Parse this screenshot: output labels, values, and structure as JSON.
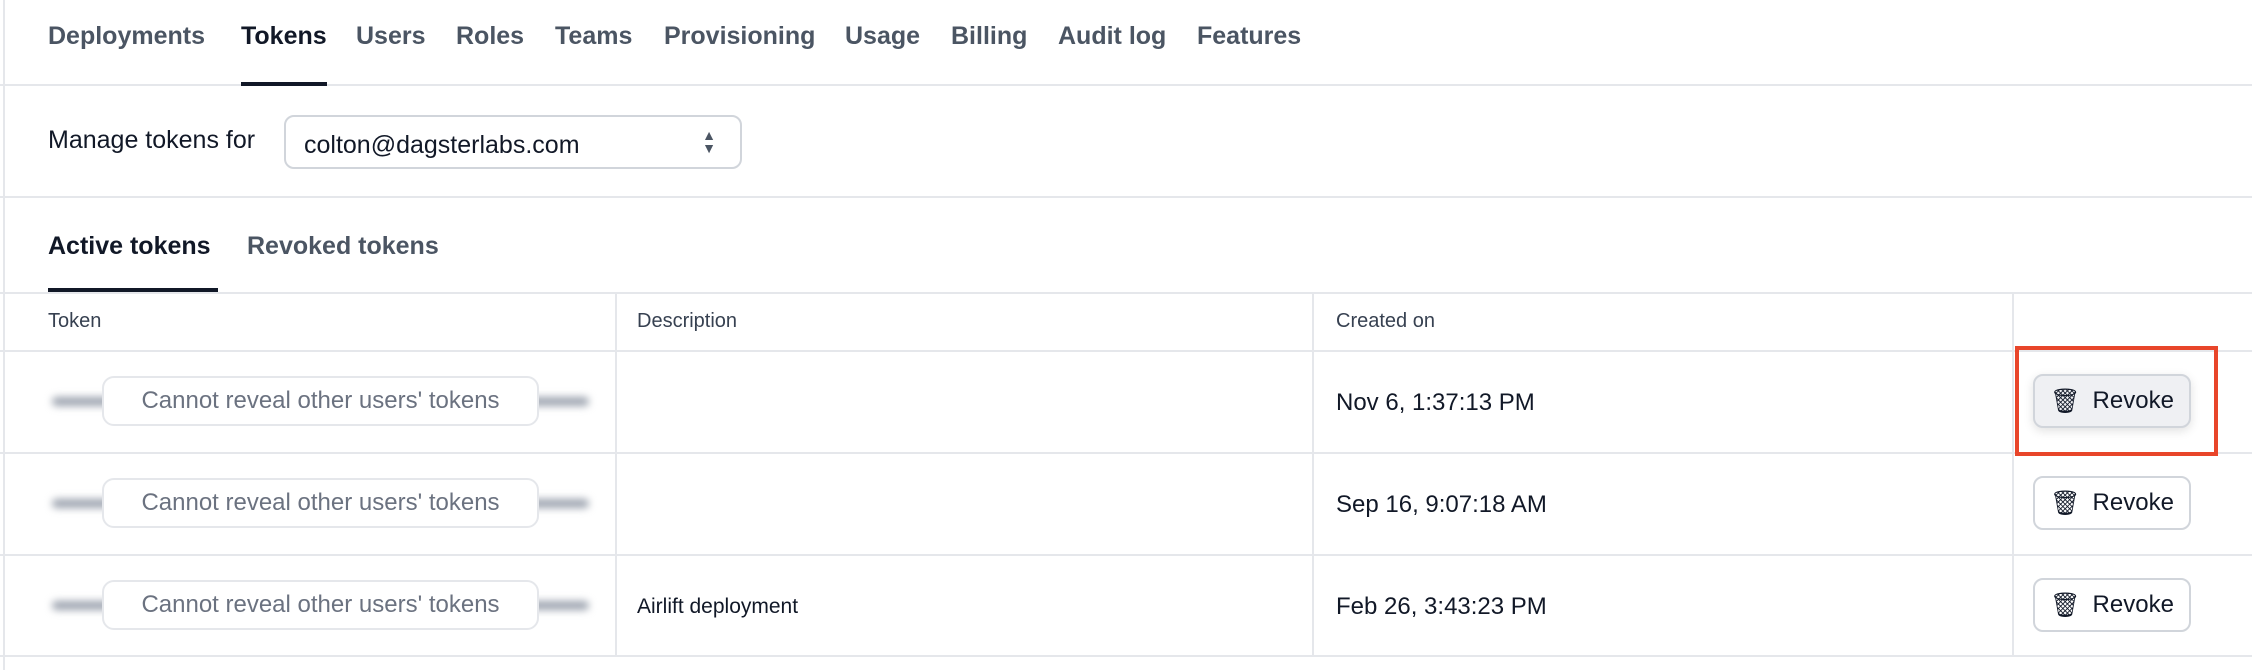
{
  "nav": {
    "tabs": [
      "Deployments",
      "Tokens",
      "Users",
      "Roles",
      "Teams",
      "Provisioning",
      "Usage",
      "Billing",
      "Audit log",
      "Features"
    ],
    "active": "Tokens"
  },
  "manage": {
    "label": "Manage tokens for",
    "selected_user": "colton@dagsterlabs.com"
  },
  "subtabs": {
    "active": "Active tokens",
    "other": "Revoked tokens"
  },
  "table": {
    "headers": [
      "Token",
      "Description",
      "Created on",
      ""
    ],
    "rows": [
      {
        "token": "Cannot reveal other users' tokens",
        "description": "",
        "created": "Nov 6, 1:37:13 PM",
        "action": "Revoke"
      },
      {
        "token": "Cannot reveal other users' tokens",
        "description": "",
        "created": "Sep 16, 9:07:18 AM",
        "action": "Revoke"
      },
      {
        "token": "Cannot reveal other users' tokens",
        "description": "Airlift deployment",
        "created": "Feb 26, 3:43:23 PM",
        "action": "Revoke"
      }
    ]
  },
  "colors": {
    "highlight": "#e8452a",
    "text": "#111827"
  }
}
